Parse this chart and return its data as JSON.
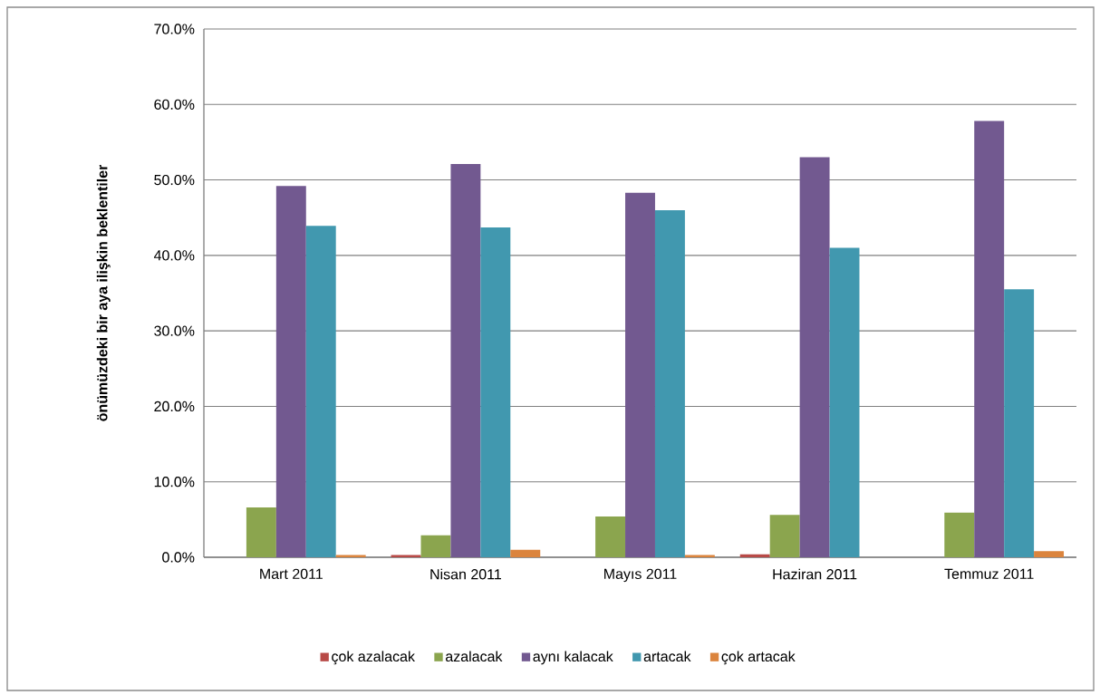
{
  "chart_data": {
    "type": "bar",
    "ylabel": "önümüzdeki bir aya ilişkin beklentiler",
    "categories": [
      "Mart 2011",
      "Nisan 2011",
      "Mayıs 2011",
      "Haziran 2011",
      "Temmuz 2011"
    ],
    "series": [
      {
        "name": "çok azalacak",
        "color": "#b84a47",
        "values": [
          0,
          0.3,
          0,
          0.4,
          0
        ]
      },
      {
        "name": "azalacak",
        "color": "#8ba54e",
        "values": [
          6.6,
          2.9,
          5.4,
          5.6,
          5.9
        ]
      },
      {
        "name": "aynı kalacak",
        "color": "#725990",
        "values": [
          49.2,
          52.1,
          48.3,
          53.0,
          57.8
        ]
      },
      {
        "name": "artacak",
        "color": "#4198af",
        "values": [
          43.9,
          43.7,
          46.0,
          41.0,
          35.5
        ]
      },
      {
        "name": "çok artacak",
        "color": "#db843d",
        "values": [
          0.3,
          1.0,
          0.3,
          0,
          0.8
        ]
      }
    ],
    "ylim": [
      0,
      70
    ],
    "yticks": [
      {
        "value": 0,
        "label": "0.0%"
      },
      {
        "value": 10,
        "label": "10.0%"
      },
      {
        "value": 20,
        "label": "20.0%"
      },
      {
        "value": 30,
        "label": "30.0%"
      },
      {
        "value": 40,
        "label": "40.0%"
      },
      {
        "value": 50,
        "label": "50.0%"
      },
      {
        "value": 60,
        "label": "60.0%"
      },
      {
        "value": 70,
        "label": "70.0%"
      }
    ],
    "grid": "y",
    "legend": "bottom"
  }
}
